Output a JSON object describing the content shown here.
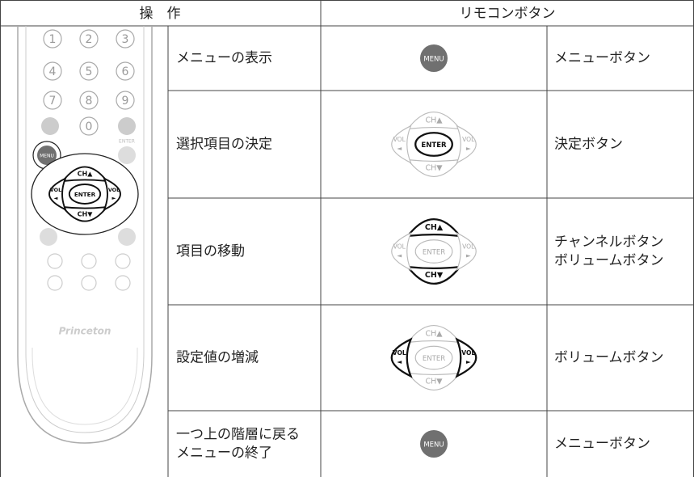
{
  "header": {
    "operation": "操　作",
    "button": "リモコンボタン"
  },
  "rows": [
    {
      "operation": [
        "メニューの表示"
      ],
      "button": [
        "メニューボタン"
      ]
    },
    {
      "operation": [
        "選択項目の決定"
      ],
      "button": [
        "決定ボタン"
      ]
    },
    {
      "operation": [
        "項目の移動"
      ],
      "button": [
        "チャンネルボタン",
        "ボリュームボタン"
      ]
    },
    {
      "operation": [
        "設定値の増減"
      ],
      "button": [
        "ボリュームボタン"
      ]
    },
    {
      "operation": [
        "一つ上の階層に戻る",
        "メニューの終了"
      ],
      "button": [
        "メニューボタン"
      ]
    }
  ],
  "labels": {
    "menu": "MENU",
    "enter": "ENTER",
    "ch_up": "CH▲",
    "ch_down": "CH▼",
    "vol": "VOL",
    "left": "◄",
    "right": "►"
  },
  "remote": {
    "keys": [
      "1",
      "2",
      "3",
      "4",
      "5",
      "6",
      "7",
      "8",
      "9",
      "0"
    ],
    "brand": "Princeton"
  }
}
